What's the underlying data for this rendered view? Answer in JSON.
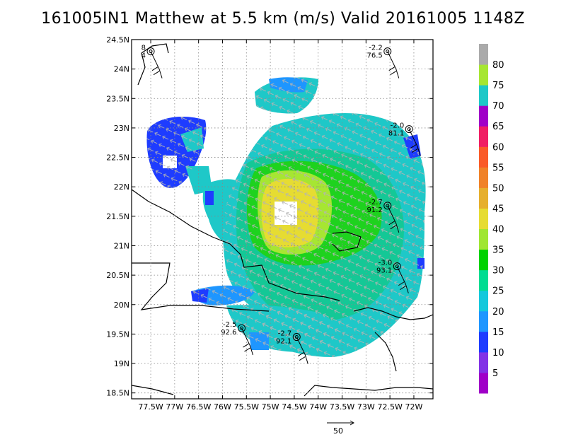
{
  "title": "161005IN1 Matthew at 5.5 km (m/s) Valid 20161005 1148Z",
  "lat_labels": [
    "24.5N",
    "24N",
    "23.5N",
    "23N",
    "22.5N",
    "22N",
    "21.5N",
    "21N",
    "20.5N",
    "20N",
    "19.5N",
    "19N",
    "18.5N"
  ],
  "lat_values": [
    24.5,
    24,
    23.5,
    23,
    22.5,
    22,
    21.5,
    21,
    20.5,
    20,
    19.5,
    19,
    18.5
  ],
  "lon_labels": [
    "77.5W",
    "77W",
    "76.5W",
    "76W",
    "75.5W",
    "75W",
    "74.5W",
    "74W",
    "73.5W",
    "73W",
    "72.5W",
    "72W"
  ],
  "lon_values": [
    -77.5,
    -77,
    -76.5,
    -76,
    -75.5,
    -75,
    -74.5,
    -74,
    -73.5,
    -73,
    -72.5,
    -72
  ],
  "colorbar": {
    "labels": [
      "5",
      "10",
      "15",
      "20",
      "25",
      "30",
      "35",
      "40",
      "45",
      "50",
      "55",
      "60",
      "65",
      "70",
      "75",
      "80"
    ],
    "colors": [
      "#a000c8",
      "#8232e6",
      "#1e3cff",
      "#1e96ff",
      "#14c8dc",
      "#00dc91",
      "#00d200",
      "#a0e632",
      "#e6dc32",
      "#e6af2d",
      "#f08228",
      "#fa5a28",
      "#f01e64",
      "#a000c8",
      "#1ec8c8",
      "#a6e632",
      "#aaaaaa"
    ]
  },
  "stations": [
    {
      "top": "8",
      "bottom": "4",
      "lon": -77.5,
      "lat": 24.3
    },
    {
      "top": "-2.2",
      "bottom": "76.5",
      "lon": -72.55,
      "lat": 24.3
    },
    {
      "top": "-2.0",
      "bottom": "81.1",
      "lon": -72.1,
      "lat": 22.98
    },
    {
      "top": "-2.7",
      "bottom": "91.2",
      "lon": -72.55,
      "lat": 21.68
    },
    {
      "top": "-3.0",
      "bottom": "93.1",
      "lon": -72.35,
      "lat": 20.65
    },
    {
      "top": "-2.5",
      "bottom": "92.6",
      "lon": -75.6,
      "lat": 19.6
    },
    {
      "top": "-2.7",
      "bottom": "92.1",
      "lon": -74.45,
      "lat": 19.45
    }
  ],
  "reference_vector": {
    "label": "50"
  }
}
